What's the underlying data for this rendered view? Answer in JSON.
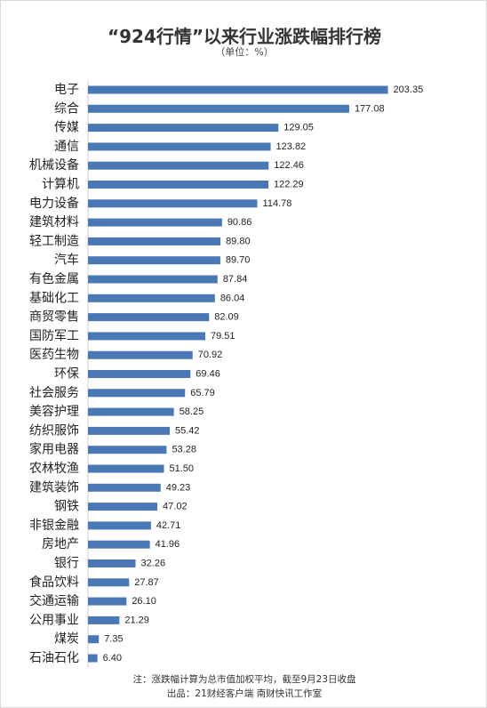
{
  "chart_data": {
    "type": "bar",
    "orientation": "horizontal",
    "title": "“924行情”以来行业涨跌幅排行榜",
    "subtitle": "（单位：%）",
    "bar_color": "#4a78b5",
    "data_labels": true,
    "grid": false,
    "legend": "none",
    "xlim": [
      0,
      220
    ],
    "categories": [
      "电子",
      "综合",
      "传媒",
      "通信",
      "机械设备",
      "计算机",
      "电力设备",
      "建筑材料",
      "轻工制造",
      "汽车",
      "有色金属",
      "基础化工",
      "商贸零售",
      "国防军工",
      "医药生物",
      "环保",
      "社会服务",
      "美容护理",
      "纺织服饰",
      "家用电器",
      "农林牧渔",
      "建筑装饰",
      "钢铁",
      "非银金融",
      "房地产",
      "银行",
      "食品饮料",
      "交通运输",
      "公用事业",
      "煤炭",
      "石油石化"
    ],
    "values": [
      203.35,
      177.08,
      129.05,
      123.82,
      122.46,
      122.29,
      114.78,
      90.86,
      89.8,
      89.7,
      87.84,
      86.04,
      82.09,
      79.51,
      70.92,
      69.46,
      65.79,
      58.25,
      55.42,
      53.28,
      51.5,
      49.23,
      47.02,
      42.71,
      41.96,
      32.26,
      27.87,
      26.1,
      21.29,
      7.35,
      6.4
    ],
    "value_labels": [
      "203.35",
      "177.08",
      "129.05",
      "123.82",
      "122.46",
      "122.29",
      "114.78",
      "90.86",
      "89.80",
      "89.70",
      "87.84",
      "86.04",
      "82.09",
      "79.51",
      "70.92",
      "69.46",
      "65.79",
      "58.25",
      "55.42",
      "53.28",
      "51.50",
      "49.23",
      "47.02",
      "42.71",
      "41.96",
      "32.26",
      "27.87",
      "26.10",
      "21.29",
      "7.35",
      "6.40"
    ]
  },
  "notes": {
    "line1": "注：涨跌幅计算为总市值加权平均，截至9月23日收盘",
    "line2": "出品：21财经客户端 南财快讯工作室"
  }
}
